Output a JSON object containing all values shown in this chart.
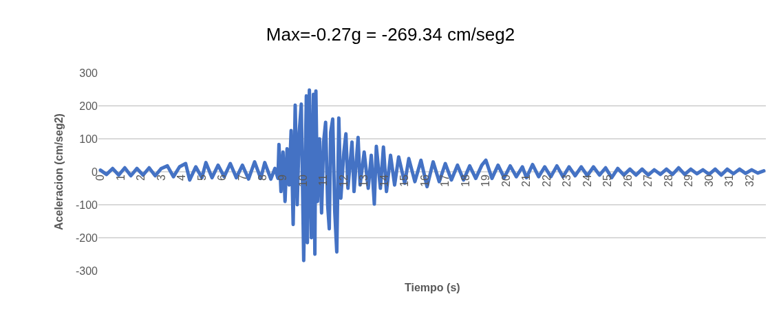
{
  "chart_data": {
    "type": "line",
    "title": "Max=-0.27g = -269.34 cm/seg2",
    "xlabel": "Tiempo (s)",
    "ylabel": "Aceleracion (cm/seg2)",
    "x": [
      0,
      0.3,
      0.6,
      0.9,
      1.2,
      1.5,
      1.8,
      2.1,
      2.4,
      2.7,
      3.0,
      3.3,
      3.6,
      3.9,
      4.2,
      4.4,
      4.7,
      5.0,
      5.2,
      5.5,
      5.8,
      6.1,
      6.4,
      6.7,
      7.0,
      7.3,
      7.6,
      7.9,
      8.1,
      8.4,
      8.6,
      8.75,
      8.8,
      8.9,
      9.0,
      9.1,
      9.2,
      9.3,
      9.4,
      9.5,
      9.6,
      9.7,
      9.8,
      9.9,
      10.02,
      10.15,
      10.2,
      10.3,
      10.4,
      10.5,
      10.57,
      10.62,
      10.7,
      10.8,
      10.9,
      11.0,
      11.1,
      11.2,
      11.28,
      11.35,
      11.45,
      11.55,
      11.65,
      11.75,
      11.85,
      12.0,
      12.1,
      12.2,
      12.4,
      12.5,
      12.7,
      12.8,
      13.0,
      13.2,
      13.35,
      13.5,
      13.6,
      13.8,
      13.95,
      14.1,
      14.3,
      14.5,
      14.7,
      15.0,
      15.2,
      15.5,
      15.8,
      16.1,
      16.4,
      16.7,
      17.0,
      17.3,
      17.6,
      17.9,
      18.2,
      18.5,
      18.8,
      19.0,
      19.3,
      19.6,
      19.9,
      20.2,
      20.5,
      20.8,
      21.0,
      21.3,
      21.6,
      21.9,
      22.2,
      22.5,
      22.8,
      23.1,
      23.4,
      23.7,
      24.0,
      24.3,
      24.6,
      24.9,
      25.2,
      25.5,
      25.8,
      26.1,
      26.4,
      26.7,
      27.0,
      27.3,
      27.6,
      27.9,
      28.2,
      28.5,
      28.8,
      29.1,
      29.4,
      29.7,
      30.0,
      30.3,
      30.6,
      30.9,
      31.2,
      31.5,
      31.8,
      32.1,
      32.4,
      32.7
    ],
    "series": [
      {
        "color": "#4472c4",
        "values": [
          5,
          -8,
          10,
          -10,
          12,
          -12,
          10,
          -10,
          12,
          -12,
          10,
          18,
          -15,
          15,
          25,
          -25,
          15,
          -18,
          28,
          -18,
          20,
          -15,
          25,
          -18,
          20,
          -22,
          30,
          -20,
          28,
          -22,
          10,
          -20,
          83,
          -60,
          60,
          -90,
          70,
          -40,
          125,
          -160,
          202,
          -100,
          120,
          205,
          -269.34,
          230,
          -215,
          248,
          -200,
          235,
          -250,
          245,
          -90,
          100,
          -125,
          90,
          150,
          -100,
          -173,
          120,
          160,
          -120,
          -243,
          163,
          -80,
          60,
          115,
          -50,
          90,
          -60,
          104,
          -40,
          60,
          -50,
          50,
          -98,
          77,
          -50,
          75,
          -60,
          50,
          -40,
          45,
          -35,
          40,
          -30,
          35,
          -45,
          30,
          -30,
          25,
          -25,
          20,
          -25,
          18,
          -20,
          20,
          35,
          -20,
          20,
          -18,
          18,
          -15,
          15,
          -18,
          22,
          -15,
          15,
          -15,
          18,
          -15,
          15,
          -12,
          15,
          -12,
          15,
          -10,
          12,
          -18,
          10,
          -10,
          8,
          -10,
          8,
          -10,
          6,
          -8,
          8,
          -8,
          12,
          -8,
          8,
          -6,
          6,
          -8,
          8,
          -10,
          8,
          -6,
          8,
          -5,
          6,
          -4,
          3
        ]
      }
    ],
    "xlim": [
      -0.1,
      32.8
    ],
    "xticks": [
      0,
      1,
      2,
      3,
      4,
      5,
      6,
      7,
      8,
      9,
      10,
      11,
      12,
      13,
      14,
      15,
      16,
      17,
      18,
      19,
      20,
      21,
      22,
      23,
      24,
      25,
      26,
      27,
      28,
      29,
      30,
      31,
      32
    ],
    "ylim": [
      -300,
      300
    ],
    "yticks": [
      -300,
      -200,
      -100,
      0,
      100,
      200,
      300
    ],
    "grid": "y",
    "marker": "none",
    "line_style": "solid"
  }
}
